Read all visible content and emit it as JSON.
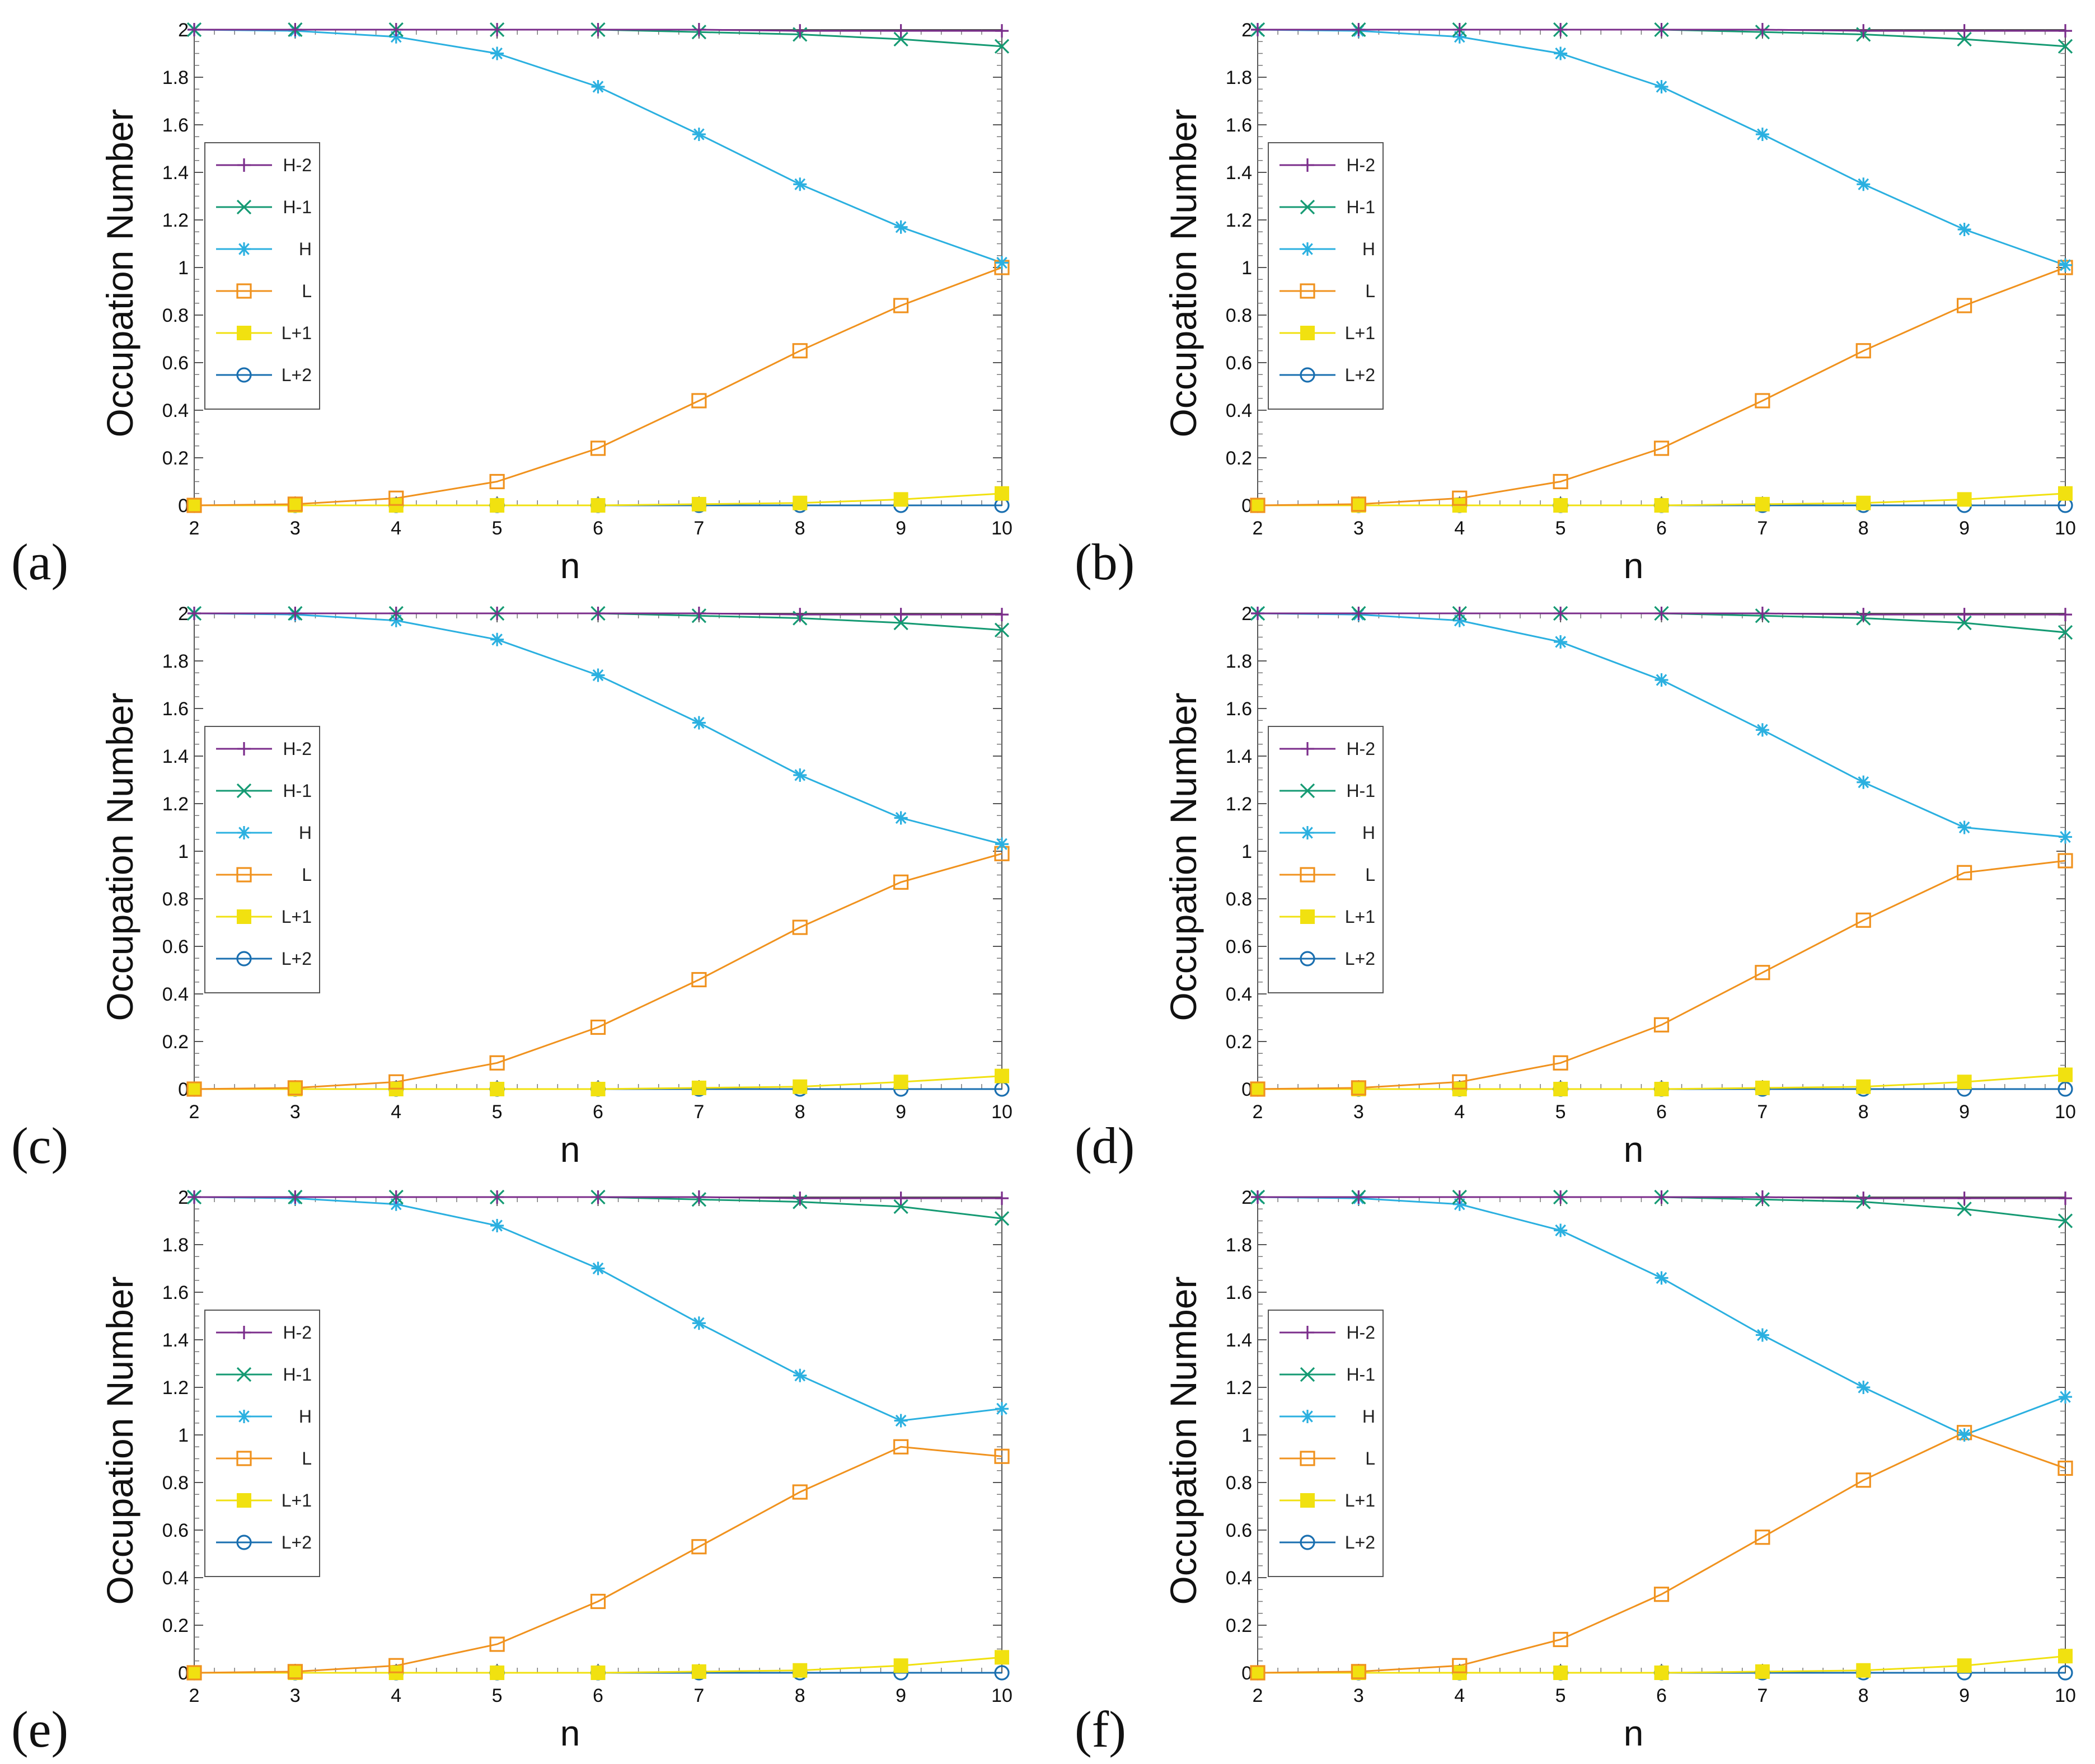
{
  "figure": {
    "series_colors": {
      "H-2": "#7b2d8b",
      "H-1": "#159a73",
      "H": "#2bb0e0",
      "L": "#f0921e",
      "L+1": "#f1e110",
      "L+2": "#1a6fb0"
    },
    "series_markers": {
      "H-2": "plus",
      "H-1": "cross",
      "H": "asterisk",
      "L": "square-open",
      "L+1": "square-filled",
      "L+2": "circle-open"
    }
  },
  "chart_data": [
    {
      "type": "line",
      "panel_label": "(a)",
      "xlabel": "n",
      "ylabel": "Occupation Number",
      "x": [
        2,
        3,
        4,
        5,
        6,
        7,
        8,
        9,
        10
      ],
      "xlim": [
        2,
        10
      ],
      "ylim": [
        0,
        2
      ],
      "xticks": [
        "2",
        "3",
        "4",
        "5",
        "6",
        "7",
        "8",
        "9",
        "10"
      ],
      "yticks": [
        "0",
        "0.2",
        "0.4",
        "0.6",
        "0.8",
        "1",
        "1.2",
        "1.4",
        "1.6",
        "1.8",
        "2"
      ],
      "legend": "left",
      "series": [
        {
          "name": "H-2",
          "values": [
            2,
            2,
            2,
            2,
            2,
            2,
            1.995,
            1.995,
            1.995
          ]
        },
        {
          "name": "H-1",
          "values": [
            2,
            2,
            2,
            2,
            2,
            1.99,
            1.98,
            1.96,
            1.93
          ]
        },
        {
          "name": "H",
          "values": [
            2,
            1.995,
            1.97,
            1.9,
            1.76,
            1.56,
            1.35,
            1.17,
            1.02
          ]
        },
        {
          "name": "L",
          "values": [
            0,
            0.005,
            0.03,
            0.1,
            0.24,
            0.44,
            0.65,
            0.84,
            1.0
          ]
        },
        {
          "name": "L+1",
          "values": [
            0,
            0,
            0,
            0,
            0,
            0.005,
            0.01,
            0.025,
            0.05
          ]
        },
        {
          "name": "L+2",
          "values": [
            0,
            0,
            0,
            0,
            0,
            0,
            0,
            0,
            0
          ]
        }
      ]
    },
    {
      "type": "line",
      "panel_label": "(b)",
      "xlabel": "n",
      "ylabel": "Occupation Number",
      "x": [
        2,
        3,
        4,
        5,
        6,
        7,
        8,
        9,
        10
      ],
      "xlim": [
        2,
        10
      ],
      "ylim": [
        0,
        2
      ],
      "xticks": [
        "2",
        "3",
        "4",
        "5",
        "6",
        "7",
        "8",
        "9",
        "10"
      ],
      "yticks": [
        "0",
        "0.2",
        "0.4",
        "0.6",
        "0.8",
        "1",
        "1.2",
        "1.4",
        "1.6",
        "1.8",
        "2"
      ],
      "legend": "left",
      "series": [
        {
          "name": "H-2",
          "values": [
            2,
            2,
            2,
            2,
            2,
            2,
            1.995,
            1.995,
            1.995
          ]
        },
        {
          "name": "H-1",
          "values": [
            2,
            2,
            2,
            2,
            2,
            1.99,
            1.98,
            1.96,
            1.93
          ]
        },
        {
          "name": "H",
          "values": [
            2,
            1.995,
            1.97,
            1.9,
            1.76,
            1.56,
            1.35,
            1.16,
            1.01
          ]
        },
        {
          "name": "L",
          "values": [
            0,
            0.005,
            0.03,
            0.1,
            0.24,
            0.44,
            0.65,
            0.84,
            1.0
          ]
        },
        {
          "name": "L+1",
          "values": [
            0,
            0,
            0,
            0,
            0,
            0.005,
            0.01,
            0.025,
            0.05
          ]
        },
        {
          "name": "L+2",
          "values": [
            0,
            0,
            0,
            0,
            0,
            0,
            0,
            0,
            0
          ]
        }
      ]
    },
    {
      "type": "line",
      "panel_label": "(c)",
      "xlabel": "n",
      "ylabel": "Occupation Number",
      "x": [
        2,
        3,
        4,
        5,
        6,
        7,
        8,
        9,
        10
      ],
      "xlim": [
        2,
        10
      ],
      "ylim": [
        0,
        2
      ],
      "xticks": [
        "2",
        "3",
        "4",
        "5",
        "6",
        "7",
        "8",
        "9",
        "10"
      ],
      "yticks": [
        "0",
        "0.2",
        "0.4",
        "0.6",
        "0.8",
        "1",
        "1.2",
        "1.4",
        "1.6",
        "1.8",
        "2"
      ],
      "legend": "left",
      "series": [
        {
          "name": "H-2",
          "values": [
            2,
            2,
            2,
            2,
            2,
            2,
            1.995,
            1.995,
            1.995
          ]
        },
        {
          "name": "H-1",
          "values": [
            2,
            2,
            2,
            2,
            2,
            1.99,
            1.98,
            1.96,
            1.93
          ]
        },
        {
          "name": "H",
          "values": [
            2,
            1.995,
            1.97,
            1.89,
            1.74,
            1.54,
            1.32,
            1.14,
            1.03
          ]
        },
        {
          "name": "L",
          "values": [
            0,
            0.005,
            0.03,
            0.11,
            0.26,
            0.46,
            0.68,
            0.87,
            0.99
          ]
        },
        {
          "name": "L+1",
          "values": [
            0,
            0,
            0,
            0,
            0,
            0.005,
            0.01,
            0.03,
            0.055
          ]
        },
        {
          "name": "L+2",
          "values": [
            0,
            0,
            0,
            0,
            0,
            0,
            0,
            0,
            0
          ]
        }
      ]
    },
    {
      "type": "line",
      "panel_label": "(d)",
      "xlabel": "n",
      "ylabel": "Occupation Number",
      "x": [
        2,
        3,
        4,
        5,
        6,
        7,
        8,
        9,
        10
      ],
      "xlim": [
        2,
        10
      ],
      "ylim": [
        0,
        2
      ],
      "xticks": [
        "2",
        "3",
        "4",
        "5",
        "6",
        "7",
        "8",
        "9",
        "10"
      ],
      "yticks": [
        "0",
        "0.2",
        "0.4",
        "0.6",
        "0.8",
        "1",
        "1.2",
        "1.4",
        "1.6",
        "1.8",
        "2"
      ],
      "legend": "left",
      "series": [
        {
          "name": "H-2",
          "values": [
            2,
            2,
            2,
            2,
            2,
            2,
            1.995,
            1.995,
            1.995
          ]
        },
        {
          "name": "H-1",
          "values": [
            2,
            2,
            2,
            2,
            2,
            1.99,
            1.98,
            1.96,
            1.92
          ]
        },
        {
          "name": "H",
          "values": [
            2,
            1.995,
            1.97,
            1.88,
            1.72,
            1.51,
            1.29,
            1.1,
            1.06
          ]
        },
        {
          "name": "L",
          "values": [
            0,
            0.005,
            0.03,
            0.11,
            0.27,
            0.49,
            0.71,
            0.91,
            0.96
          ]
        },
        {
          "name": "L+1",
          "values": [
            0,
            0,
            0,
            0,
            0,
            0.005,
            0.01,
            0.03,
            0.06
          ]
        },
        {
          "name": "L+2",
          "values": [
            0,
            0,
            0,
            0,
            0,
            0,
            0,
            0,
            0
          ]
        }
      ]
    },
    {
      "type": "line",
      "panel_label": "(e)",
      "xlabel": "n",
      "ylabel": "Occupation Number",
      "x": [
        2,
        3,
        4,
        5,
        6,
        7,
        8,
        9,
        10
      ],
      "xlim": [
        2,
        10
      ],
      "ylim": [
        0,
        2
      ],
      "xticks": [
        "2",
        "3",
        "4",
        "5",
        "6",
        "7",
        "8",
        "9",
        "10"
      ],
      "yticks": [
        "0",
        "0.2",
        "0.4",
        "0.6",
        "0.8",
        "1",
        "1.2",
        "1.4",
        "1.6",
        "1.8",
        "2"
      ],
      "legend": "left",
      "series": [
        {
          "name": "H-2",
          "values": [
            2,
            2,
            2,
            2,
            2,
            2,
            1.995,
            1.995,
            1.995
          ]
        },
        {
          "name": "H-1",
          "values": [
            2,
            2,
            2,
            2,
            2,
            1.99,
            1.98,
            1.96,
            1.91
          ]
        },
        {
          "name": "H",
          "values": [
            2,
            1.995,
            1.97,
            1.88,
            1.7,
            1.47,
            1.25,
            1.06,
            1.11
          ]
        },
        {
          "name": "L",
          "values": [
            0,
            0.005,
            0.03,
            0.12,
            0.3,
            0.53,
            0.76,
            0.95,
            0.91
          ]
        },
        {
          "name": "L+1",
          "values": [
            0,
            0,
            0,
            0,
            0,
            0.005,
            0.01,
            0.03,
            0.065
          ]
        },
        {
          "name": "L+2",
          "values": [
            0,
            0,
            0,
            0,
            0,
            0,
            0,
            0,
            0
          ]
        }
      ]
    },
    {
      "type": "line",
      "panel_label": "(f)",
      "xlabel": "n",
      "ylabel": "Occupation Number",
      "x": [
        2,
        3,
        4,
        5,
        6,
        7,
        8,
        9,
        10
      ],
      "xlim": [
        2,
        10
      ],
      "ylim": [
        0,
        2
      ],
      "xticks": [
        "2",
        "3",
        "4",
        "5",
        "6",
        "7",
        "8",
        "9",
        "10"
      ],
      "yticks": [
        "0",
        "0.2",
        "0.4",
        "0.6",
        "0.8",
        "1",
        "1.2",
        "1.4",
        "1.6",
        "1.8",
        "2"
      ],
      "legend": "left",
      "series": [
        {
          "name": "H-2",
          "values": [
            2,
            2,
            2,
            2,
            2,
            2,
            1.995,
            1.995,
            1.995
          ]
        },
        {
          "name": "H-1",
          "values": [
            2,
            2,
            2,
            2,
            2,
            1.99,
            1.98,
            1.95,
            1.9
          ]
        },
        {
          "name": "H",
          "values": [
            2,
            1.995,
            1.97,
            1.86,
            1.66,
            1.42,
            1.2,
            1.0,
            1.16
          ]
        },
        {
          "name": "L",
          "values": [
            0,
            0.005,
            0.03,
            0.14,
            0.33,
            0.57,
            0.81,
            1.01,
            0.86
          ]
        },
        {
          "name": "L+1",
          "values": [
            0,
            0,
            0,
            0,
            0,
            0.005,
            0.01,
            0.03,
            0.07
          ]
        },
        {
          "name": "L+2",
          "values": [
            0,
            0,
            0,
            0,
            0,
            0,
            0,
            0,
            0
          ]
        }
      ]
    }
  ]
}
